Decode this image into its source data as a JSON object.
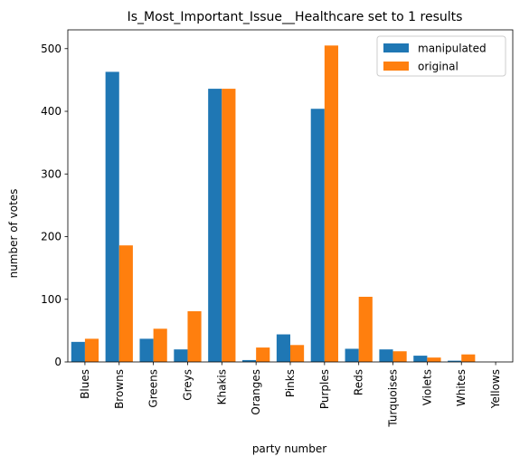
{
  "chart_data": {
    "type": "bar",
    "title": "Is_Most_Important_Issue__Healthcare set to 1 results",
    "xlabel": "party number",
    "ylabel": "number of votes",
    "ylim": [
      0,
      530
    ],
    "yticks": [
      0,
      100,
      200,
      300,
      400,
      500
    ],
    "categories": [
      "Blues",
      "Browns",
      "Greens",
      "Greys",
      "Khakis",
      "Oranges",
      "Pinks",
      "Purples",
      "Reds",
      "Turquoises",
      "Violets",
      "Whites",
      "Yellows"
    ],
    "series": [
      {
        "name": "manipulated",
        "color": "#1f77b4",
        "values": [
          32,
          463,
          37,
          20,
          436,
          3,
          44,
          404,
          21,
          20,
          10,
          2,
          0
        ]
      },
      {
        "name": "original",
        "color": "#ff7f0e",
        "values": [
          37,
          186,
          53,
          81,
          436,
          23,
          27,
          505,
          104,
          17,
          7,
          12,
          0
        ]
      }
    ],
    "legend_position": "top-right",
    "grid": false
  }
}
